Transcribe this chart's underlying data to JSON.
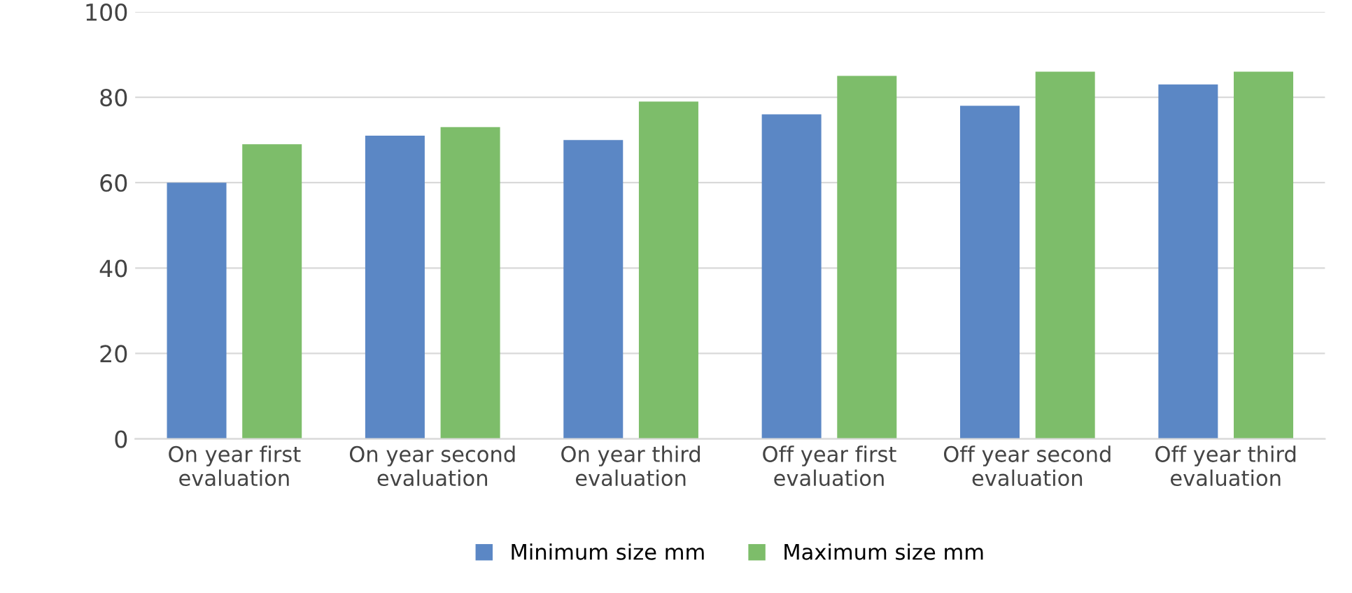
{
  "chart_data": {
    "type": "bar",
    "categories": [
      "On year first\nevaluation",
      "On year second\nevaluation",
      "On year third\nevaluation",
      "Off year first\nevaluation",
      "Off year second\nevaluation",
      "Off year third\nevaluation"
    ],
    "series": [
      {
        "name": "Minimum size mm",
        "color": "#5b87c5",
        "values": [
          60,
          71,
          70,
          76,
          78,
          83
        ]
      },
      {
        "name": "Maximum size mm",
        "color": "#7dbd6a",
        "values": [
          69,
          73,
          79,
          85,
          86,
          86
        ]
      }
    ],
    "ylim": [
      0,
      100
    ],
    "yticks": [
      0,
      20,
      40,
      60,
      80,
      100
    ],
    "grid": "y",
    "legend": "bottom"
  }
}
